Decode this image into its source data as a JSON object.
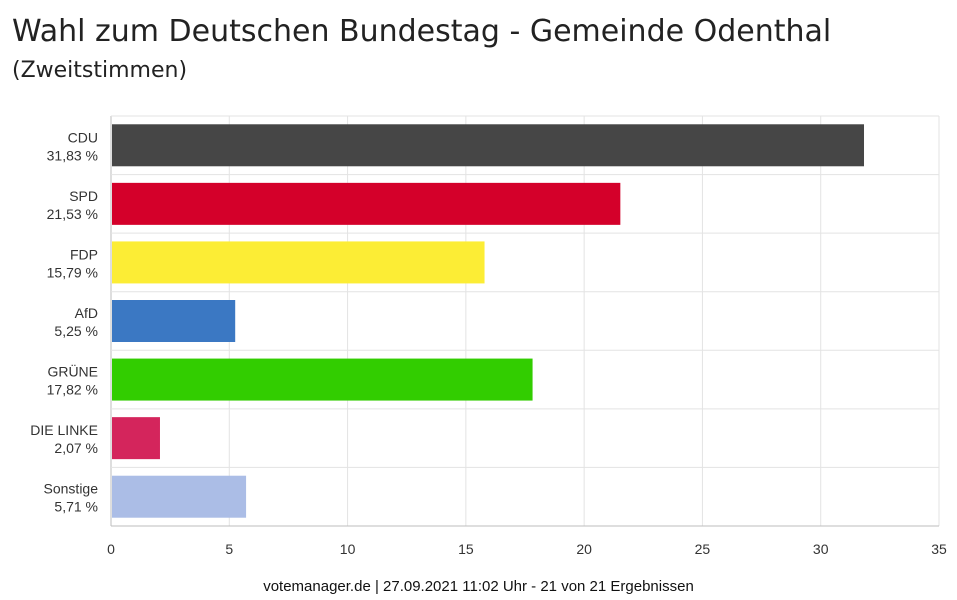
{
  "title": "Wahl zum Deutschen Bundestag - Gemeinde Odenthal",
  "subtitle": "(Zweitstimmen)",
  "footer": "votemanager.de | 27.09.2021 11:02 Uhr - 21 von 21 Ergebnissen",
  "chart_data": {
    "type": "bar",
    "orientation": "horizontal",
    "categories": [
      "CDU",
      "SPD",
      "FDP",
      "AfD",
      "GRÜNE",
      "DIE LINKE",
      "Sonstige"
    ],
    "values": [
      31.83,
      21.53,
      15.79,
      5.25,
      17.82,
      2.07,
      5.71
    ],
    "value_labels": [
      "31,83 %",
      "21,53 %",
      "15,79 %",
      "5,25 %",
      "17,82 %",
      "2,07 %",
      "5,71 %"
    ],
    "colors": [
      "#464646",
      "#d4002a",
      "#fced35",
      "#3b78c3",
      "#32cd00",
      "#d4255c",
      "#abbde6"
    ],
    "xlim": [
      0,
      35
    ],
    "xticks": [
      "0",
      "5",
      "10",
      "15",
      "20",
      "25",
      "30",
      "35"
    ],
    "xtick_values": [
      0,
      5,
      10,
      15,
      20,
      25,
      30,
      35
    ],
    "grid": true,
    "legend": "none",
    "title": "Wahl zum Deutschen Bundestag - Gemeinde Odenthal",
    "subtitle": "(Zweitstimmen)",
    "xlabel": "",
    "ylabel": ""
  }
}
